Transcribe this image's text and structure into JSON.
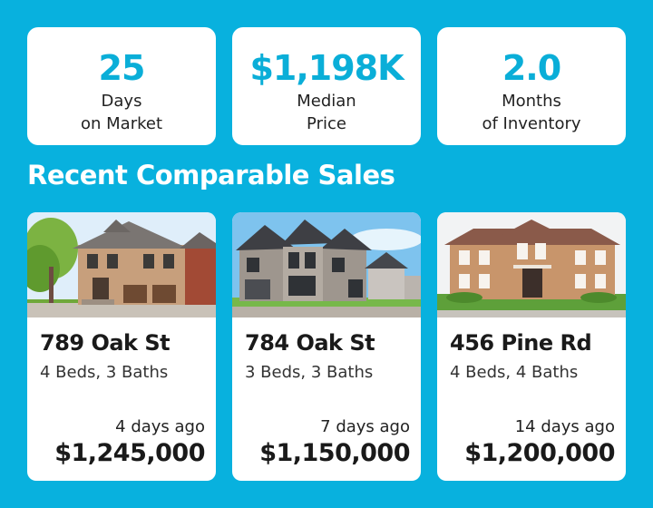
{
  "stats": [
    {
      "value": "25",
      "label1": "Days",
      "label2": "on Market"
    },
    {
      "value": "$1,198K",
      "label1": "Median",
      "label2": "Price"
    },
    {
      "value": "2.0",
      "label1": "Months",
      "label2": "of Inventory"
    }
  ],
  "section_title": "Recent Comparable Sales",
  "listings": [
    {
      "address": "789 Oak St",
      "details": "4 Beds, 3 Baths",
      "sold_ago": "4 days ago",
      "price": "$1,245,000"
    },
    {
      "address": "784 Oak St",
      "details": "3 Beds, 3 Baths",
      "sold_ago": "7 days ago",
      "price": "$1,150,000"
    },
    {
      "address": "456 Pine Rd",
      "details": "4 Beds, 4 Baths",
      "sold_ago": "14 days ago",
      "price": "$1,200,000"
    }
  ],
  "colors": {
    "background": "#08b1de",
    "accent": "#0aaed8",
    "card": "#ffffff"
  }
}
